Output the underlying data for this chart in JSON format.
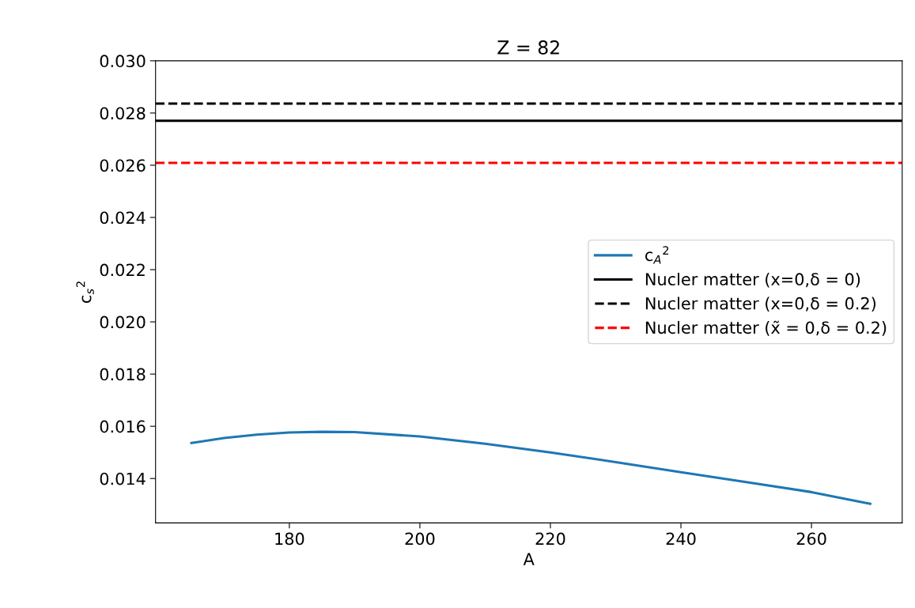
{
  "chart_data": {
    "type": "line",
    "title": "Z = 82",
    "xlabel": "A",
    "ylabel": "c$_{s}$$^{2}$",
    "xlim": [
      159.5,
      273.9
    ],
    "xticks": [
      180,
      200,
      220,
      240,
      260
    ],
    "ylim": [
      0.0123,
      0.03
    ],
    "yticks": [
      0.014,
      0.016,
      0.018,
      {
        "value": 0.02,
        "label": "0.020"
      },
      0.022,
      0.024,
      0.026,
      0.028,
      {
        "value": 0.03,
        "label": "0.030"
      }
    ],
    "grid": false,
    "legend": "center right",
    "series": [
      {
        "name": "c$_{A}$$^{2}$",
        "color": "#1f77b4",
        "line_style": "solid",
        "x": [
          165,
          170,
          175,
          180,
          185,
          190,
          200,
          210,
          220,
          230,
          240,
          250,
          260,
          269
        ],
        "values": [
          0.01536,
          0.01555,
          0.01568,
          0.01576,
          0.01579,
          0.01578,
          0.01561,
          0.01533,
          0.015,
          0.01463,
          0.01424,
          0.01386,
          0.01348,
          0.01303
        ]
      },
      {
        "name": "Nucler matter (x=0,δ = 0)",
        "color": "#000000",
        "line_style": "solid",
        "x": [
          159.5,
          273.9
        ],
        "values": [
          0.0277,
          0.0277
        ]
      },
      {
        "name": "Nucler matter (x=0,δ = 0.2)",
        "color": "#000000",
        "line_style": "dashed",
        "x": [
          159.5,
          273.9
        ],
        "values": [
          0.02836,
          0.02836
        ]
      },
      {
        "name": "Nucler matter (x̃ = 0,δ = 0.2)",
        "color": "#ff0000",
        "line_style": "dashed",
        "x": [
          159.5,
          273.9
        ],
        "values": [
          0.02609,
          0.02609
        ]
      }
    ]
  }
}
